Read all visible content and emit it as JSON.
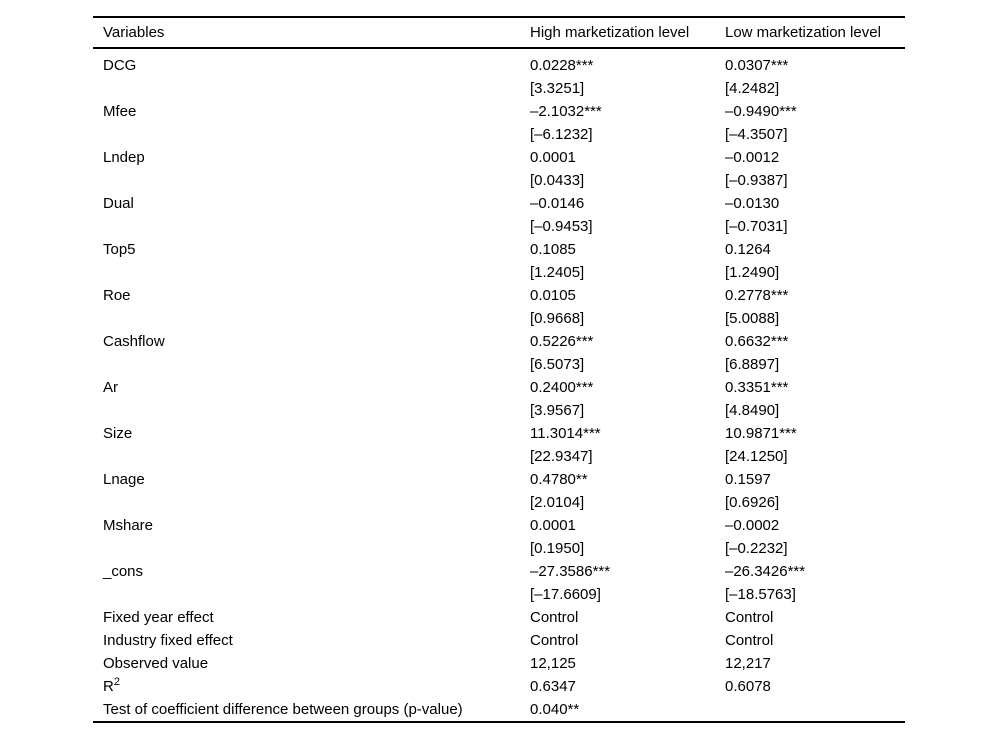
{
  "table": {
    "columns": [
      "Variables",
      "High marketization level",
      "Low marketization level"
    ],
    "coefficient_rows": [
      {
        "variable": "DCG",
        "high": "0.0228***",
        "high_t": "[3.3251]",
        "low": "0.0307***",
        "low_t": "[4.2482]"
      },
      {
        "variable": "Mfee",
        "high": "–2.1032***",
        "high_t": "[–6.1232]",
        "low": "–0.9490***",
        "low_t": "[–4.3507]"
      },
      {
        "variable": "Lndep",
        "high": "0.0001",
        "high_t": "[0.0433]",
        "low": "–0.0012",
        "low_t": "[–0.9387]"
      },
      {
        "variable": "Dual",
        "high": "–0.0146",
        "high_t": "[–0.9453]",
        "low": "–0.0130",
        "low_t": "[–0.7031]"
      },
      {
        "variable": "Top5",
        "high": "0.1085",
        "high_t": "[1.2405]",
        "low": "0.1264",
        "low_t": "[1.2490]"
      },
      {
        "variable": "Roe",
        "high": "0.0105",
        "high_t": "[0.9668]",
        "low": "0.2778***",
        "low_t": "[5.0088]"
      },
      {
        "variable": "Cashflow",
        "high": "0.5226***",
        "high_t": "[6.5073]",
        "low": "0.6632***",
        "low_t": "[6.8897]"
      },
      {
        "variable": "Ar",
        "high": "0.2400***",
        "high_t": "[3.9567]",
        "low": "0.3351***",
        "low_t": "[4.8490]"
      },
      {
        "variable": "Size",
        "high": "11.3014***",
        "high_t": "[22.9347]",
        "low": "10.9871***",
        "low_t": "[24.1250]"
      },
      {
        "variable": "Lnage",
        "high": "0.4780**",
        "high_t": "[2.0104]",
        "low": "0.1597",
        "low_t": "[0.6926]"
      },
      {
        "variable": "Mshare",
        "high": "0.0001",
        "high_t": "[0.1950]",
        "low": "–0.0002",
        "low_t": "[–0.2232]"
      },
      {
        "variable": "_cons",
        "high": "–27.3586***",
        "high_t": "[–17.6609]",
        "low": "–26.3426***",
        "low_t": "[–18.5763]"
      }
    ],
    "summary_rows": [
      {
        "label": "Fixed year effect",
        "label_sup": "",
        "high": "Control",
        "low": "Control"
      },
      {
        "label": "Industry fixed effect",
        "label_sup": "",
        "high": "Control",
        "low": "Control"
      },
      {
        "label": "Observed value",
        "label_sup": "",
        "high": "12,125",
        "low": "12,217"
      },
      {
        "label": "R",
        "label_sup": "2",
        "high": "0.6347",
        "low": "0.6078"
      },
      {
        "label": "Test of coefficient difference between groups (p-value)",
        "label_sup": "",
        "high": "0.040**",
        "low": ""
      }
    ]
  }
}
